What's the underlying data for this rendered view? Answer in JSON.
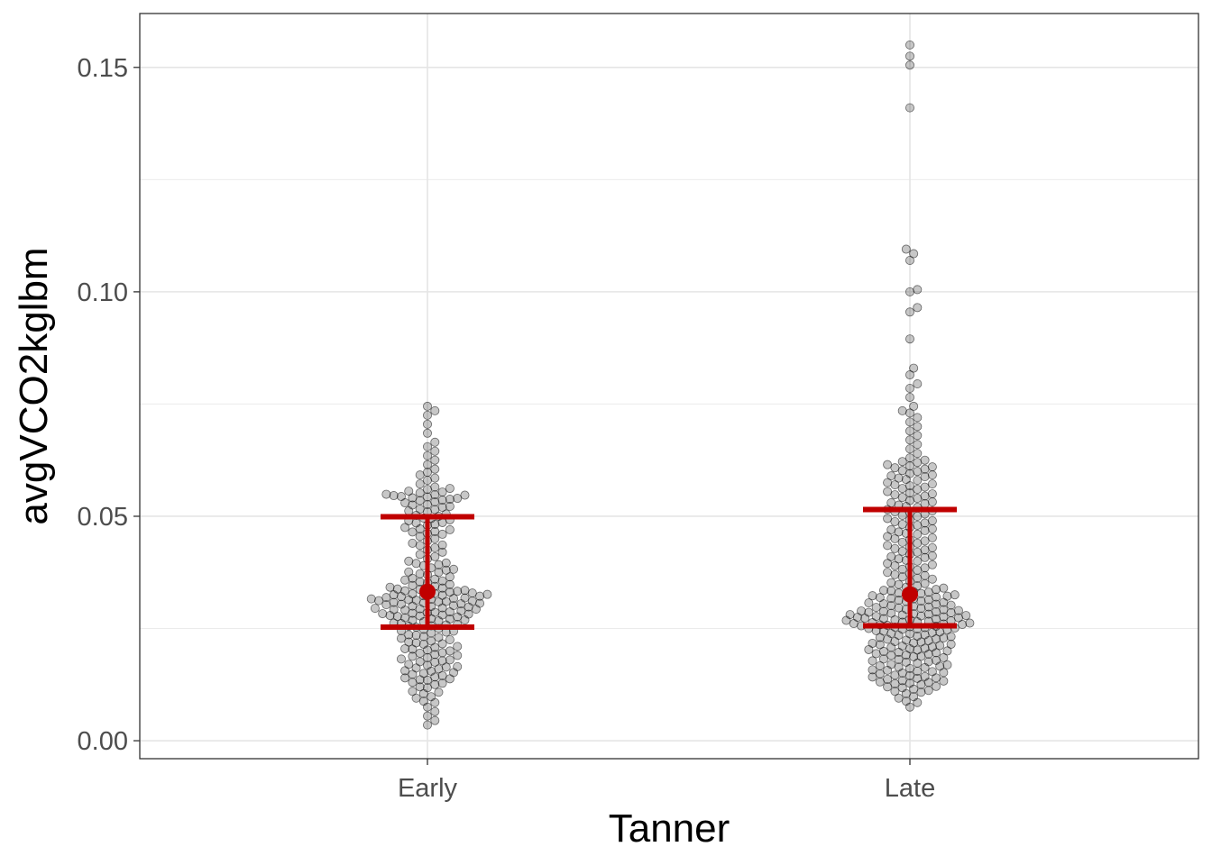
{
  "chart_data": {
    "type": "scatter",
    "subtype": "beeswarm with mean and SD error bars",
    "title": "",
    "xlabel": "Tanner",
    "ylabel": "avgVCO2kglbm",
    "categories": [
      "Early",
      "Late"
    ],
    "ylim": [
      -0.004,
      0.162
    ],
    "yticks": [
      0.0,
      0.05,
      0.1,
      0.15
    ],
    "ytick_labels": [
      "0.00",
      "0.05",
      "0.10",
      "0.15"
    ],
    "grid": true,
    "legend": "none",
    "point_color": "#000000",
    "point_alpha": 0.22,
    "summary_color": "#c00000",
    "summary": [
      {
        "category": "Early",
        "mean": 0.0332,
        "lower": 0.0253,
        "upper": 0.0499
      },
      {
        "category": "Late",
        "mean": 0.0326,
        "lower": 0.0256,
        "upper": 0.0515
      }
    ],
    "points": {
      "Early": [
        0.0745,
        0.0735,
        0.0725,
        0.0705,
        0.0685,
        0.0665,
        0.0655,
        0.0645,
        0.0635,
        0.0625,
        0.0615,
        0.0605,
        0.0598,
        0.0592,
        0.0585,
        0.058,
        0.0572,
        0.0565,
        0.056,
        0.0556,
        0.0552,
        0.0549,
        0.0546,
        0.0543,
        0.054,
        0.0535,
        0.053,
        0.0525,
        0.052,
        0.0515,
        0.051,
        0.0505,
        0.05,
        0.0495,
        0.049,
        0.0485,
        0.048,
        0.0475,
        0.047,
        0.0465,
        0.046,
        0.045,
        0.044,
        0.043,
        0.042,
        0.041,
        0.04,
        0.0395,
        0.039,
        0.0385,
        0.038,
        0.0375,
        0.037,
        0.0365,
        0.036,
        0.0356,
        0.0352,
        0.0348,
        0.0344,
        0.034,
        0.0337,
        0.0334,
        0.0331,
        0.0328,
        0.0325,
        0.0322,
        0.0319,
        0.0316,
        0.0313,
        0.031,
        0.0307,
        0.0304,
        0.0301,
        0.0298,
        0.0295,
        0.0292,
        0.0289,
        0.0286,
        0.0283,
        0.028,
        0.0277,
        0.0274,
        0.0271,
        0.0268,
        0.0265,
        0.0262,
        0.0259,
        0.0256,
        0.0253,
        0.025,
        0.0245,
        0.024,
        0.0235,
        0.023,
        0.0225,
        0.022,
        0.0215,
        0.021,
        0.0205,
        0.02,
        0.0195,
        0.019,
        0.0185,
        0.018,
        0.0175,
        0.017,
        0.0165,
        0.016,
        0.0155,
        0.015,
        0.0145,
        0.014,
        0.0135,
        0.013,
        0.0125,
        0.012,
        0.011,
        0.0105,
        0.0095,
        0.0085,
        0.0075,
        0.0065,
        0.0055,
        0.0045,
        0.0035,
        0.0548,
        0.0544,
        0.0538,
        0.0532,
        0.0522,
        0.0512,
        0.0502,
        0.0492,
        0.0482,
        0.0472,
        0.0462,
        0.0455,
        0.0445,
        0.0435,
        0.0425,
        0.0415,
        0.0405,
        0.0392,
        0.0382,
        0.0372,
        0.0362,
        0.0354,
        0.0346,
        0.0338,
        0.0333,
        0.0327,
        0.0323,
        0.0318,
        0.0314,
        0.0309,
        0.0305,
        0.03,
        0.0296,
        0.0291,
        0.0287,
        0.0282,
        0.0278,
        0.0272,
        0.0267,
        0.0261,
        0.0255,
        0.0248,
        0.0242,
        0.0236,
        0.0228,
        0.0222,
        0.0216,
        0.0208,
        0.0202,
        0.0196,
        0.0188,
        0.0182,
        0.0176,
        0.0168,
        0.0162,
        0.0156,
        0.0148,
        0.0142,
        0.0136,
        0.0128,
        0.0118,
        0.0108,
        0.0098,
        0.0088,
        0.0562,
        0.0554,
        0.0547,
        0.0541,
        0.0536,
        0.0526,
        0.0516,
        0.0496,
        0.0486,
        0.0466,
        0.0436,
        0.0396,
        0.0376,
        0.0358,
        0.0342,
        0.0335,
        0.0329,
        0.0324,
        0.0317,
        0.0311,
        0.0306,
        0.0299,
        0.0293,
        0.0285,
        0.0279,
        0.0269,
        0.0258,
        0.0244,
        0.0232,
        0.0218,
        0.0204,
        0.0192,
        0.0178,
        0.0164,
        0.0152,
        0.0138,
        0.0336,
        0.0326,
        0.0315,
        0.0303,
        0.0294,
        0.0284,
        0.0276,
        0.0312,
        0.0321,
        0.0308
      ],
      "Late": [
        0.155,
        0.1525,
        0.1505,
        0.141,
        0.1095,
        0.1085,
        0.107,
        0.1005,
        0.1,
        0.0965,
        0.0955,
        0.0895,
        0.083,
        0.0815,
        0.0795,
        0.0785,
        0.0765,
        0.0745,
        0.0735,
        0.073,
        0.072,
        0.071,
        0.07,
        0.069,
        0.068,
        0.067,
        0.066,
        0.065,
        0.064,
        0.063,
        0.062,
        0.0615,
        0.061,
        0.0605,
        0.06,
        0.0595,
        0.059,
        0.0585,
        0.058,
        0.0575,
        0.057,
        0.0565,
        0.056,
        0.0555,
        0.055,
        0.0545,
        0.054,
        0.0535,
        0.053,
        0.0525,
        0.052,
        0.0515,
        0.051,
        0.0505,
        0.05,
        0.0495,
        0.049,
        0.0485,
        0.048,
        0.0475,
        0.047,
        0.0465,
        0.046,
        0.0455,
        0.045,
        0.0445,
        0.044,
        0.0435,
        0.043,
        0.0425,
        0.042,
        0.0415,
        0.041,
        0.0405,
        0.04,
        0.0395,
        0.039,
        0.0385,
        0.038,
        0.0375,
        0.037,
        0.0365,
        0.036,
        0.0355,
        0.035,
        0.0345,
        0.034,
        0.0335,
        0.0332,
        0.0329,
        0.0326,
        0.0323,
        0.032,
        0.0317,
        0.0314,
        0.0311,
        0.0308,
        0.0305,
        0.0302,
        0.0299,
        0.0296,
        0.0293,
        0.029,
        0.0288,
        0.0286,
        0.0284,
        0.0282,
        0.028,
        0.0278,
        0.0276,
        0.0274,
        0.0272,
        0.027,
        0.0268,
        0.0266,
        0.0264,
        0.0262,
        0.026,
        0.0258,
        0.0256,
        0.0254,
        0.0252,
        0.025,
        0.0248,
        0.0245,
        0.0242,
        0.0239,
        0.0236,
        0.0233,
        0.023,
        0.0227,
        0.0224,
        0.0221,
        0.0218,
        0.0215,
        0.0212,
        0.0209,
        0.0206,
        0.0203,
        0.02,
        0.0197,
        0.0194,
        0.0191,
        0.0188,
        0.0185,
        0.0182,
        0.0179,
        0.0176,
        0.0173,
        0.017,
        0.0167,
        0.0164,
        0.0161,
        0.0158,
        0.0155,
        0.0152,
        0.0149,
        0.0146,
        0.0143,
        0.014,
        0.0137,
        0.0134,
        0.0131,
        0.0128,
        0.0125,
        0.012,
        0.0115,
        0.011,
        0.0105,
        0.0095,
        0.0085,
        0.0075,
        0.0622,
        0.0612,
        0.0602,
        0.0592,
        0.0582,
        0.0572,
        0.0562,
        0.0552,
        0.0542,
        0.0532,
        0.0522,
        0.0512,
        0.0502,
        0.0492,
        0.0482,
        0.0472,
        0.0462,
        0.0452,
        0.0442,
        0.0432,
        0.0422,
        0.0412,
        0.0402,
        0.0392,
        0.0382,
        0.0372,
        0.0362,
        0.0352,
        0.0342,
        0.0334,
        0.0328,
        0.0322,
        0.0316,
        0.031,
        0.0304,
        0.0298,
        0.0292,
        0.0287,
        0.0283,
        0.0279,
        0.0275,
        0.0271,
        0.0267,
        0.0263,
        0.0259,
        0.0255,
        0.0251,
        0.0247,
        0.0241,
        0.0235,
        0.0229,
        0.0223,
        0.0217,
        0.0211,
        0.0205,
        0.0199,
        0.0193,
        0.0187,
        0.0181,
        0.0175,
        0.0169,
        0.0163,
        0.0157,
        0.0151,
        0.0145,
        0.0139,
        0.0133,
        0.0127,
        0.0118,
        0.0108,
        0.0098,
        0.0088,
        0.0625,
        0.0608,
        0.0588,
        0.0568,
        0.0548,
        0.0528,
        0.0508,
        0.0488,
        0.0468,
        0.0448,
        0.0428,
        0.0408,
        0.0388,
        0.0368,
        0.0348,
        0.0331,
        0.0319,
        0.0307,
        0.0297,
        0.0289,
        0.0281,
        0.0273,
        0.0265,
        0.0257,
        0.0249,
        0.0238,
        0.0226,
        0.0214,
        0.0202,
        0.019,
        0.0178,
        0.0166,
        0.0154,
        0.0142,
        0.013,
        0.0121,
        0.0112,
        0.0285,
        0.0277,
        0.0269,
        0.0261,
        0.0295,
        0.0301,
        0.0313,
        0.0325,
        0.0337,
        0.0253,
        0.0244,
        0.0232,
        0.022,
        0.0208,
        0.0196
      ]
    }
  }
}
